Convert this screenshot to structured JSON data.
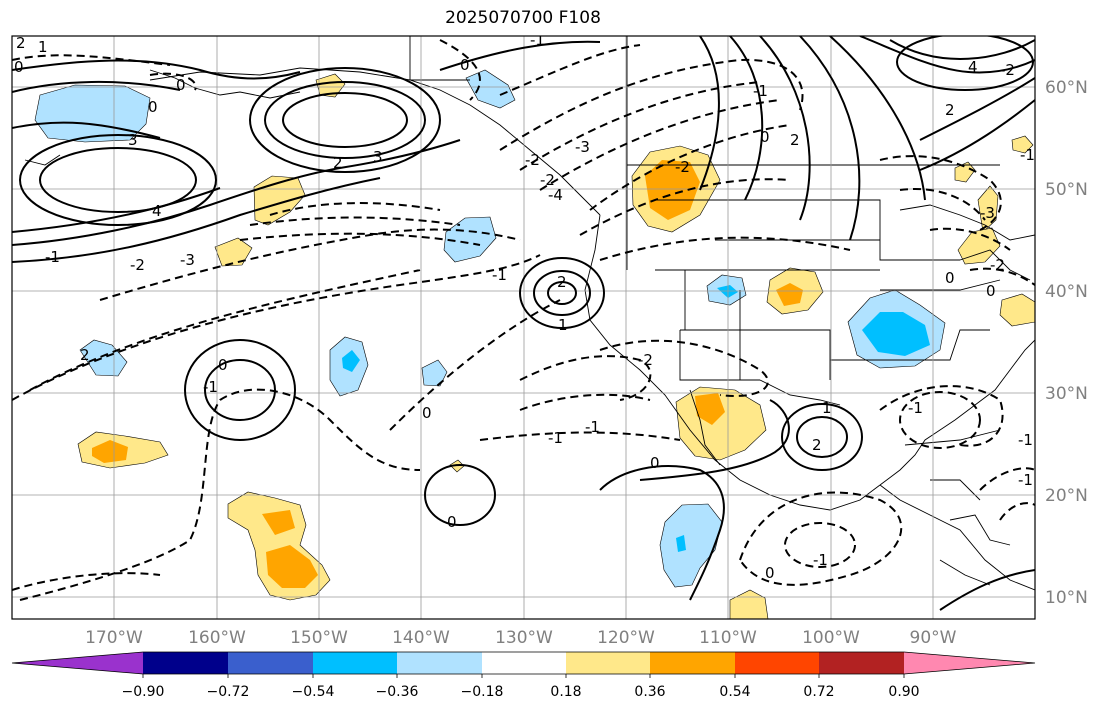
{
  "title": "2025070700 F108",
  "latitudes": [
    "60°N",
    "50°N",
    "40°N",
    "30°N",
    "20°N",
    "10°N"
  ],
  "longitudes": [
    "170°W",
    "160°W",
    "150°W",
    "140°W",
    "130°W",
    "120°W",
    "110°W",
    "100°W",
    "90°W"
  ],
  "colorbar": {
    "colors": [
      "#9a32cd",
      "#00008b",
      "#3a5fcd",
      "#00bfff",
      "#b0e2ff",
      "#ffffff",
      "#ffe88a",
      "#ffa500",
      "#ff4500",
      "#b22222",
      "#ff88b0"
    ],
    "tick_labels": [
      "−0.90",
      "−0.72",
      "−0.54",
      "−0.36",
      "−0.18",
      "0.18",
      "0.36",
      "0.54",
      "0.72",
      "0.90"
    ]
  },
  "contour_labels": [
    "2",
    "1",
    "0",
    "0",
    "3",
    "4",
    "-1",
    "-2",
    "-3",
    "0",
    "2",
    "3",
    "-1",
    "-2",
    "-2",
    "-3",
    "0",
    "2",
    "1",
    "-1",
    "2",
    "0",
    "-1",
    "0",
    "0",
    "-2",
    "-1",
    "1",
    "-1",
    "2",
    "-1",
    "-1",
    "0",
    "-1",
    "0",
    "-1",
    "-1",
    "0",
    "-2",
    "0",
    "-3",
    "2",
    "-2",
    "-4",
    "4",
    "2",
    "-1",
    "-2",
    "0"
  ]
}
